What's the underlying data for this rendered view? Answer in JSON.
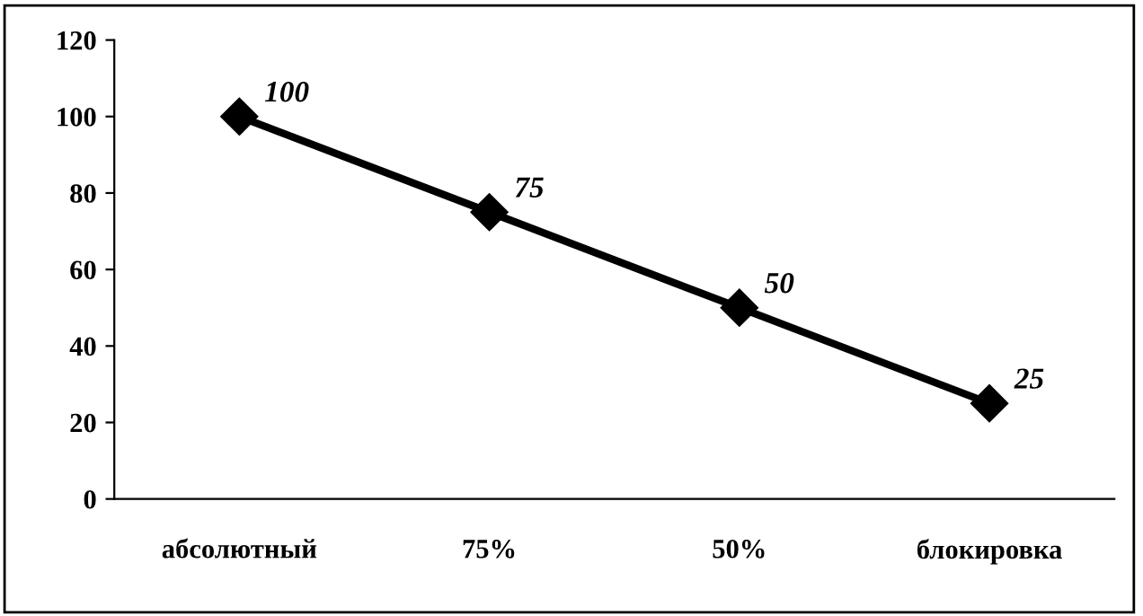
{
  "chart_data": {
    "type": "line",
    "categories": [
      "абсолютный",
      "75%",
      "50%",
      "блокировка"
    ],
    "series": [
      {
        "color": "#000000",
        "values": [
          100,
          75,
          50,
          25
        ]
      }
    ],
    "ylim": [
      0,
      120
    ],
    "yticks": [
      0,
      20,
      40,
      60,
      80,
      100,
      120
    ],
    "marker": "diamond",
    "line_style": "solid",
    "grid": false,
    "legend": false,
    "data_labels": true
  }
}
